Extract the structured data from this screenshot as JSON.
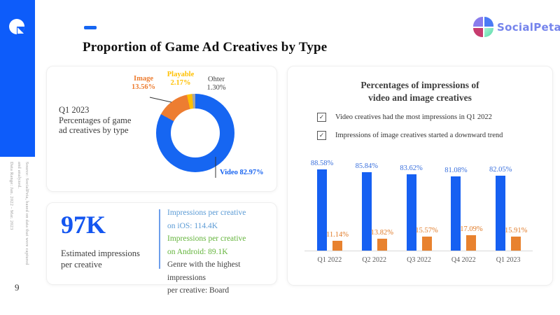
{
  "slide": {
    "title": "Proportion of Game Ad Creatives by Type",
    "page_number": "9",
    "source_note": "Source: SocialPeta, based on data that were captured and analyzed.\nData Range: Jan. 2022 - Mar. 2023",
    "brand_name": "SocialPeta",
    "accent_color": "#0d5cfa"
  },
  "icons": {
    "checkbox_check": "✓"
  },
  "donut_card": {
    "caption": "Q1 2023\nPercentages of game\nad creatives by type",
    "labels": {
      "image": {
        "text": "Image\n13.56%"
      },
      "playable": {
        "text": "Playable\n2.17%"
      },
      "other": {
        "text": "Ohter\n1.30%"
      },
      "video": {
        "text": "Video 82.97%"
      }
    }
  },
  "stat_card": {
    "big_number": "97K",
    "label": "Estimated impressions\nper creative",
    "details": [
      {
        "text": "Impressions per creative\non iOS: 114.4K",
        "color": "#5b9bd5"
      },
      {
        "text": "Impressions per creative\non Android: 89.1K",
        "color": "#64b43c"
      },
      {
        "text": "Genre with the highest impressions\nper creative: Board",
        "color": "#404040"
      }
    ]
  },
  "right_panel": {
    "title": "Percentages of impressions of\nvideo and image creatives",
    "checklist": [
      "Video creatives had the most impressions in Q1 2022",
      "Impressions of image creatives started a downward trend"
    ]
  },
  "chart_data": [
    {
      "type": "pie",
      "donut": true,
      "title": "Q1 2023 Percentages of game ad creatives by type",
      "labels": [
        "Video",
        "Image",
        "Playable",
        "Ohter"
      ],
      "values": [
        82.97,
        13.56,
        2.17,
        1.3
      ],
      "unit": "%",
      "colors": [
        "#1666f2",
        "#ed7d31",
        "#ffc000",
        "#a6a6a6"
      ]
    },
    {
      "type": "bar",
      "title": "Percentages of impressions of video and image creatives",
      "categories": [
        "Q1 2022",
        "Q2 2022",
        "Q3 2022",
        "Q4 2022",
        "Q1 2023"
      ],
      "series": [
        {
          "name": "Video",
          "values": [
            88.58,
            85.84,
            83.62,
            81.08,
            82.05
          ],
          "color": "#1660f2",
          "label_color": "#3a70dd"
        },
        {
          "name": "Image",
          "values": [
            11.14,
            13.82,
            15.57,
            17.09,
            15.91
          ],
          "color": "#e8822f",
          "label_color": "#e07b28"
        }
      ],
      "unit": "%",
      "ylim": [
        0,
        100
      ],
      "grid": false,
      "data_labels": true,
      "legend": "none"
    }
  ]
}
